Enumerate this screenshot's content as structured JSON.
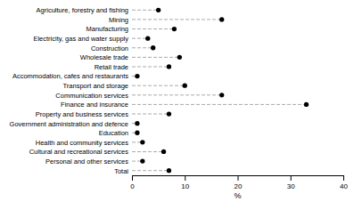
{
  "chart_data": {
    "type": "lollipop",
    "orientation": "horizontal",
    "categories": [
      "Agriculture, forestry and fishing",
      "Mining",
      "Manufacturing",
      "Electricity, gas and water supply",
      "Construction",
      "Wholesale trade",
      "Retail trade",
      "Accommodation, cafes and restaurants",
      "Transport and storage",
      "Communication services",
      "Finance and insurance",
      "Property and business services",
      "Government administration and defence",
      "Education",
      "Health and community services",
      "Cultural and recreational services",
      "Personal and other services",
      "Total"
    ],
    "values": [
      5,
      17,
      8,
      3,
      4,
      9,
      7,
      1,
      10,
      17,
      33,
      7,
      1,
      1,
      2,
      6,
      2,
      7
    ],
    "color": "#000000",
    "line_style": "dashed",
    "marker": "circle",
    "xlabel": "%",
    "xlim": [
      0,
      40
    ],
    "xticks": [
      0,
      10,
      20,
      30,
      40
    ],
    "grid": false
  }
}
